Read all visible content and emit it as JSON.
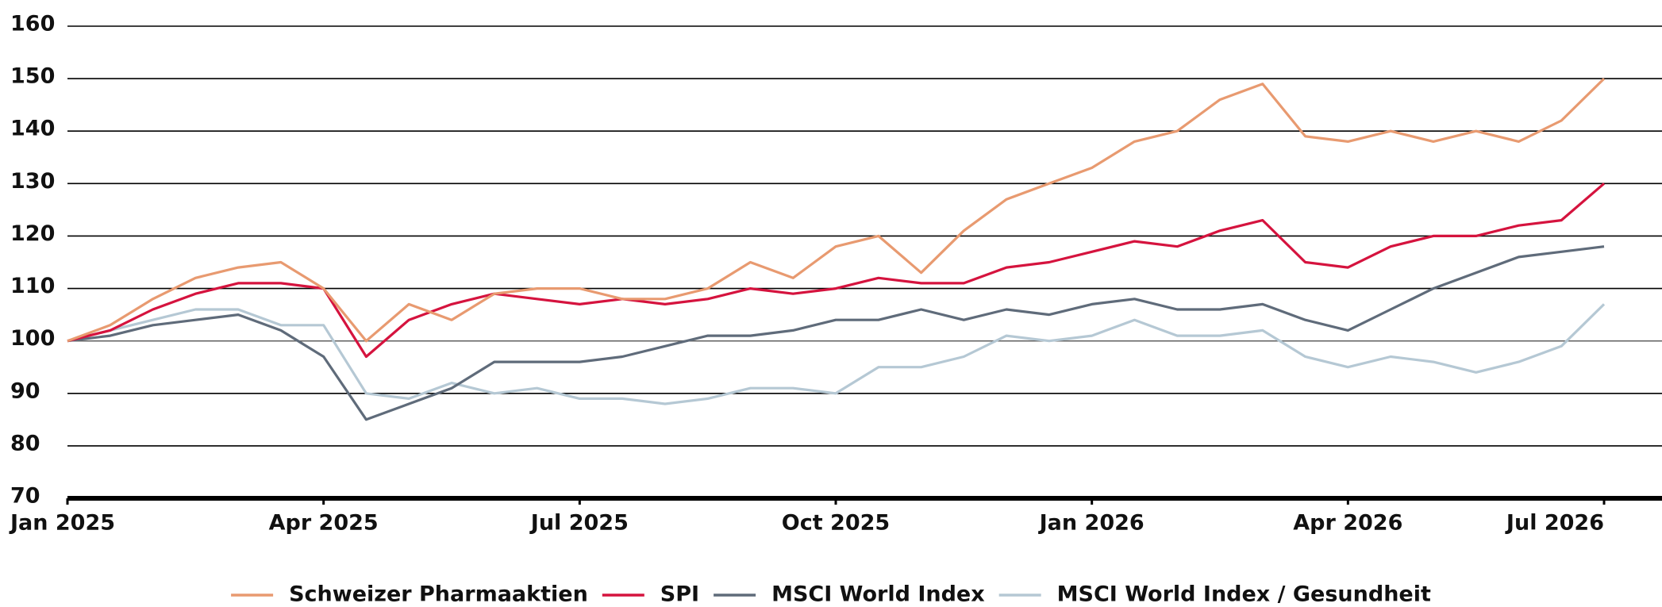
{
  "chart_data": {
    "type": "line",
    "categories": [
      "Jan 2025",
      null,
      null,
      null,
      null,
      null,
      "Apr 2025",
      null,
      null,
      null,
      null,
      null,
      "Jul 2025",
      null,
      null,
      null,
      null,
      null,
      "Oct 2025",
      null,
      null,
      null,
      null,
      null,
      "Jan 2026",
      null,
      null,
      null,
      null,
      null,
      "Apr 2026",
      null,
      null,
      null,
      null,
      null,
      "Jul 2026"
    ],
    "series": [
      {
        "name": "Schweizer Pharmaaktien",
        "color": "#e89a70",
        "values": [
          100,
          103,
          108,
          112,
          114,
          115,
          110,
          100,
          107,
          104,
          109,
          110,
          110,
          108,
          108,
          110,
          115,
          112,
          118,
          120,
          113,
          121,
          127,
          130,
          133,
          138,
          140,
          146,
          149,
          139,
          138,
          140,
          138,
          140,
          138,
          142,
          150
        ]
      },
      {
        "name": "SPI",
        "color": "#d5133e",
        "values": [
          100,
          102,
          106,
          109,
          111,
          111,
          110,
          97,
          104,
          107,
          109,
          108,
          107,
          108,
          107,
          108,
          110,
          109,
          110,
          112,
          111,
          111,
          114,
          115,
          117,
          119,
          118,
          121,
          123,
          115,
          114,
          118,
          120,
          120,
          122,
          123,
          130
        ]
      },
      {
        "name": "MSCI World Index",
        "color": "#5f6b7a",
        "values": [
          100,
          101,
          103,
          104,
          105,
          102,
          97,
          85,
          88,
          91,
          96,
          96,
          96,
          97,
          99,
          101,
          101,
          102,
          104,
          104,
          106,
          104,
          106,
          105,
          107,
          108,
          106,
          106,
          107,
          104,
          102,
          106,
          110,
          113,
          116,
          117,
          118
        ]
      },
      {
        "name": "MSCI World Index / Gesundheit",
        "color": "#b5c8d4",
        "values": [
          100,
          102,
          104,
          106,
          106,
          103,
          103,
          90,
          89,
          92,
          90,
          91,
          89,
          89,
          88,
          89,
          91,
          91,
          90,
          95,
          95,
          97,
          101,
          100,
          101,
          104,
          101,
          101,
          102,
          97,
          95,
          97,
          96,
          94,
          96,
          99,
          107
        ]
      }
    ],
    "ylim": [
      70,
      160
    ],
    "yticks": [
      70,
      80,
      90,
      100,
      110,
      120,
      130,
      140,
      150,
      160
    ],
    "grid": true,
    "legend": "bottom"
  }
}
